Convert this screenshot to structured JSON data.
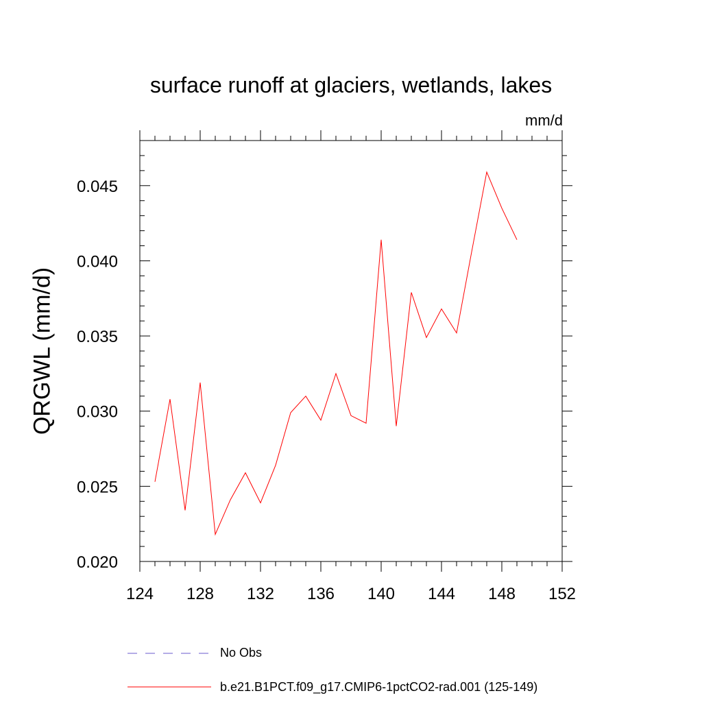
{
  "chart_data": {
    "type": "line",
    "title": "surface runoff at glaciers, wetlands, lakes",
    "units_label": "mm/d",
    "ylabel": "QRGWL  (mm/d)",
    "xlim": [
      124,
      152
    ],
    "ylim": [
      0.02,
      0.048
    ],
    "x_ticks": [
      124,
      128,
      132,
      136,
      140,
      144,
      148,
      152
    ],
    "x_tick_labels": [
      "124",
      "128",
      "132",
      "136",
      "140",
      "144",
      "148",
      "152"
    ],
    "y_ticks": [
      0.02,
      0.025,
      0.03,
      0.035,
      0.04,
      0.045
    ],
    "y_tick_labels": [
      "0.020",
      "0.025",
      "0.030",
      "0.035",
      "0.040",
      "0.045"
    ],
    "grid": false,
    "legend_position": "bottom",
    "series": [
      {
        "name": "No Obs",
        "color": "#6a5acd",
        "dash": "dashed",
        "x": [],
        "values": []
      },
      {
        "name": "b.e21.B1PCT.f09_g17.CMIP6-1pctCO2-rad.001 (125-149)",
        "color": "#ff0000",
        "dash": "solid",
        "x": [
          125,
          126,
          127,
          128,
          129,
          130,
          131,
          132,
          133,
          134,
          135,
          136,
          137,
          138,
          139,
          140,
          141,
          142,
          143,
          144,
          145,
          146,
          147,
          148,
          149
        ],
        "values": [
          0.0253,
          0.0308,
          0.0234,
          0.0319,
          0.0218,
          0.0241,
          0.0259,
          0.0239,
          0.0264,
          0.0299,
          0.031,
          0.0294,
          0.0325,
          0.0297,
          0.0292,
          0.0414,
          0.029,
          0.0379,
          0.0349,
          0.0368,
          0.0352,
          0.0406,
          0.0459,
          0.0435,
          0.0414
        ]
      }
    ]
  }
}
